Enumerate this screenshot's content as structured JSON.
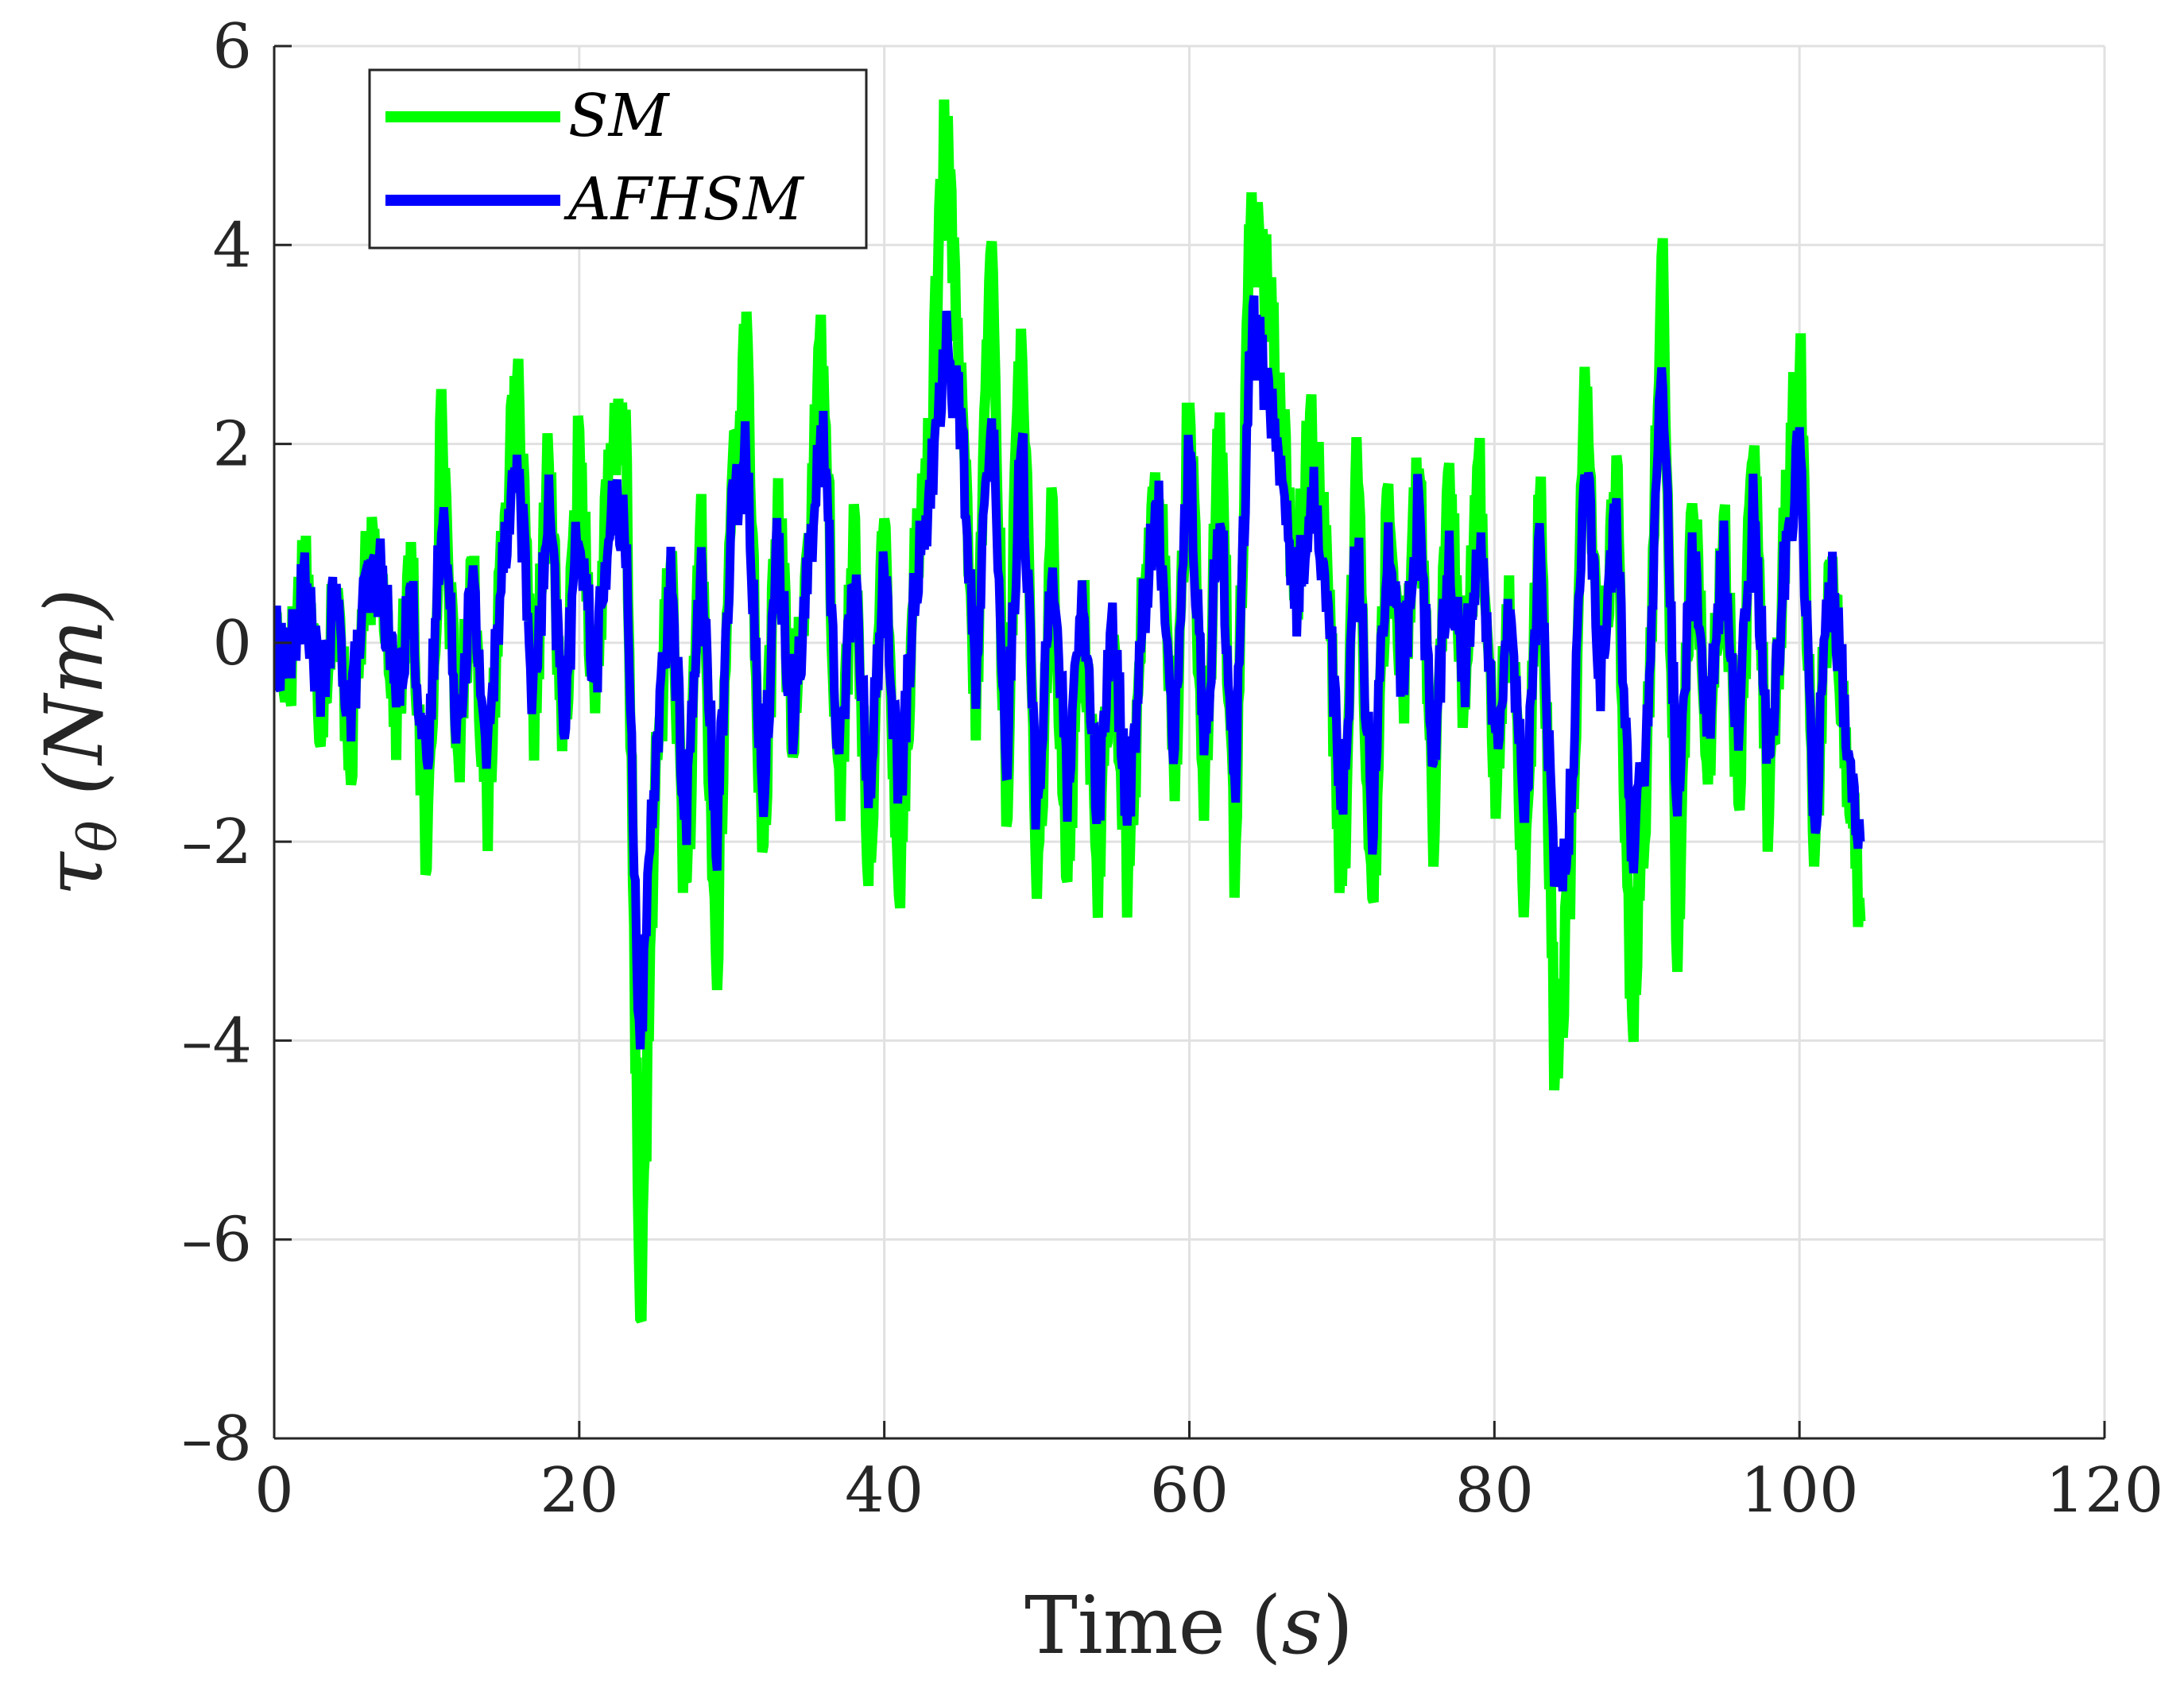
{
  "chart_data": {
    "type": "line",
    "title": "",
    "xlabel": "Time (s)",
    "xlabel_prefix": "Time (",
    "xlabel_var": "s",
    "xlabel_suffix": ")",
    "ylabel": "τθ (Nm)",
    "ylabel_sym": "τ",
    "ylabel_sub": "θ",
    "ylabel_unit": " (Nm)",
    "xlim": [
      0,
      120
    ],
    "ylim": [
      -8,
      6
    ],
    "grid": true,
    "legend_position": "top-left",
    "x_ticks": [
      0,
      20,
      40,
      60,
      80,
      100,
      120
    ],
    "y_ticks": [
      6,
      4,
      2,
      0,
      -2,
      -4,
      -6,
      -8
    ],
    "x_tick_labels": [
      "0",
      "20",
      "40",
      "60",
      "80",
      "100",
      "120"
    ],
    "y_tick_labels": [
      "6",
      "4",
      "2",
      "0",
      "–2",
      "–4",
      "–6",
      "–8"
    ],
    "x_data_range": [
      0,
      104
    ],
    "series": [
      {
        "name": "SM",
        "color": "#00ff00",
        "samples": [
          [
            0,
            0
          ],
          [
            1,
            -0.3
          ],
          [
            2,
            0.9
          ],
          [
            3,
            -0.7
          ],
          [
            4,
            0.5
          ],
          [
            5,
            -1.1
          ],
          [
            6,
            0.6
          ],
          [
            7,
            0.9
          ],
          [
            8,
            -0.7
          ],
          [
            9,
            0.7
          ],
          [
            10,
            -2.3
          ],
          [
            11,
            2.3
          ],
          [
            12,
            -1.2
          ],
          [
            13,
            0.8
          ],
          [
            14,
            -1.8
          ],
          [
            15,
            1.3
          ],
          [
            16,
            2.4
          ],
          [
            17,
            -0.8
          ],
          [
            18,
            1.8
          ],
          [
            19,
            -1.1
          ],
          [
            20,
            2.0
          ],
          [
            21,
            -0.5
          ],
          [
            22,
            1.7
          ],
          [
            23,
            2.4
          ],
          [
            24,
            -6.8
          ],
          [
            25,
            -1.5
          ],
          [
            26,
            0.9
          ],
          [
            27,
            -2.7
          ],
          [
            28,
            1.2
          ],
          [
            29,
            -3.4
          ],
          [
            30,
            1.7
          ],
          [
            31,
            3.0
          ],
          [
            32,
            -2.4
          ],
          [
            33,
            1.5
          ],
          [
            34,
            -1.0
          ],
          [
            35,
            1.0
          ],
          [
            36,
            3.2
          ],
          [
            37,
            -1.7
          ],
          [
            38,
            1.0
          ],
          [
            39,
            -2.2
          ],
          [
            40,
            1.2
          ],
          [
            41,
            -2.5
          ],
          [
            42,
            0.8
          ],
          [
            43,
            2.0
          ],
          [
            44,
            5.2
          ],
          [
            45,
            2.5
          ],
          [
            46,
            -0.7
          ],
          [
            47,
            4.2
          ],
          [
            48,
            -1.7
          ],
          [
            49,
            3.6
          ],
          [
            50,
            -2.8
          ],
          [
            51,
            1.2
          ],
          [
            52,
            -2.2
          ],
          [
            53,
            0.5
          ],
          [
            54,
            -2.4
          ],
          [
            55,
            0.3
          ],
          [
            56,
            -2.5
          ],
          [
            57,
            0.5
          ],
          [
            58,
            1.7
          ],
          [
            59,
            -1.5
          ],
          [
            60,
            2.6
          ],
          [
            61,
            -1.7
          ],
          [
            62,
            2.3
          ],
          [
            63,
            -2.2
          ],
          [
            64,
            4.2
          ],
          [
            65,
            3.7
          ],
          [
            66,
            2.3
          ],
          [
            67,
            0.5
          ],
          [
            68,
            2.3
          ],
          [
            69,
            1.0
          ],
          [
            70,
            -2.8
          ],
          [
            71,
            1.8
          ],
          [
            72,
            -2.8
          ],
          [
            73,
            1.4
          ],
          [
            74,
            -0.5
          ],
          [
            75,
            2.0
          ],
          [
            76,
            -1.9
          ],
          [
            77,
            1.5
          ],
          [
            78,
            -0.5
          ],
          [
            79,
            1.7
          ],
          [
            80,
            -1.5
          ],
          [
            81,
            0.5
          ],
          [
            82,
            -2.5
          ],
          [
            83,
            1.5
          ],
          [
            84,
            -4.5
          ],
          [
            85,
            -2.3
          ],
          [
            86,
            2.7
          ],
          [
            87,
            -0.5
          ],
          [
            88,
            1.7
          ],
          [
            89,
            -4.0
          ],
          [
            90,
            -1.2
          ],
          [
            91,
            4.1
          ],
          [
            92,
            -3.1
          ],
          [
            93,
            1.5
          ],
          [
            94,
            -1.2
          ],
          [
            95,
            1.2
          ],
          [
            96,
            -1.5
          ],
          [
            97,
            2.0
          ],
          [
            98,
            -1.9
          ],
          [
            99,
            1.0
          ],
          [
            100,
            3.0
          ],
          [
            101,
            -2.3
          ],
          [
            102,
            1.0
          ],
          [
            103,
            -0.9
          ],
          [
            104,
            -2.8
          ]
        ]
      },
      {
        "name": "AFHSM",
        "color": "#0000ff",
        "samples": [
          [
            0,
            0
          ],
          [
            1,
            -0.2
          ],
          [
            2,
            0.6
          ],
          [
            3,
            -0.5
          ],
          [
            4,
            0.4
          ],
          [
            5,
            -0.7
          ],
          [
            6,
            0.5
          ],
          [
            7,
            0.7
          ],
          [
            8,
            -0.5
          ],
          [
            9,
            0.5
          ],
          [
            10,
            -1.5
          ],
          [
            11,
            1.5
          ],
          [
            12,
            -0.8
          ],
          [
            13,
            0.6
          ],
          [
            14,
            -1.2
          ],
          [
            15,
            1.0
          ],
          [
            16,
            1.8
          ],
          [
            17,
            -0.6
          ],
          [
            18,
            1.3
          ],
          [
            19,
            -0.8
          ],
          [
            20,
            1.3
          ],
          [
            21,
            -0.4
          ],
          [
            22,
            1.2
          ],
          [
            23,
            1.3
          ],
          [
            24,
            -4.2
          ],
          [
            25,
            -1.1
          ],
          [
            26,
            0.6
          ],
          [
            27,
            -1.8
          ],
          [
            28,
            0.8
          ],
          [
            29,
            -2.0
          ],
          [
            30,
            1.2
          ],
          [
            31,
            2.0
          ],
          [
            32,
            -1.6
          ],
          [
            33,
            1.0
          ],
          [
            34,
            -0.7
          ],
          [
            35,
            0.7
          ],
          [
            36,
            2.2
          ],
          [
            37,
            -1.2
          ],
          [
            38,
            0.7
          ],
          [
            39,
            -1.5
          ],
          [
            40,
            0.8
          ],
          [
            41,
            -1.7
          ],
          [
            42,
            0.6
          ],
          [
            43,
            1.5
          ],
          [
            44,
            3.0
          ],
          [
            45,
            2.3
          ],
          [
            46,
            -0.5
          ],
          [
            47,
            2.5
          ],
          [
            48,
            -1.2
          ],
          [
            49,
            2.2
          ],
          [
            50,
            -1.8
          ],
          [
            51,
            0.9
          ],
          [
            52,
            -1.5
          ],
          [
            53,
            0.4
          ],
          [
            54,
            -1.7
          ],
          [
            55,
            0.2
          ],
          [
            56,
            -1.8
          ],
          [
            57,
            0.4
          ],
          [
            58,
            1.3
          ],
          [
            59,
            -1.0
          ],
          [
            60,
            2.0
          ],
          [
            61,
            -1.2
          ],
          [
            62,
            1.5
          ],
          [
            63,
            -1.5
          ],
          [
            64,
            3.2
          ],
          [
            65,
            2.7
          ],
          [
            66,
            1.7
          ],
          [
            67,
            0.4
          ],
          [
            68,
            1.5
          ],
          [
            69,
            0.7
          ],
          [
            70,
            -1.8
          ],
          [
            71,
            1.2
          ],
          [
            72,
            -1.8
          ],
          [
            73,
            1.0
          ],
          [
            74,
            -0.4
          ],
          [
            75,
            1.4
          ],
          [
            76,
            -1.3
          ],
          [
            77,
            1.0
          ],
          [
            78,
            -0.4
          ],
          [
            79,
            1.2
          ],
          [
            80,
            -1.0
          ],
          [
            81,
            0.4
          ],
          [
            82,
            -1.7
          ],
          [
            83,
            1.0
          ],
          [
            84,
            -2.6
          ],
          [
            85,
            -1.6
          ],
          [
            86,
            1.8
          ],
          [
            87,
            -0.4
          ],
          [
            88,
            1.3
          ],
          [
            89,
            -2.2
          ],
          [
            90,
            -0.9
          ],
          [
            91,
            2.9
          ],
          [
            92,
            -1.7
          ],
          [
            93,
            1.0
          ],
          [
            94,
            -0.9
          ],
          [
            95,
            0.9
          ],
          [
            96,
            -1.0
          ],
          [
            97,
            1.4
          ],
          [
            98,
            -1.3
          ],
          [
            99,
            0.7
          ],
          [
            100,
            2.1
          ],
          [
            101,
            -1.8
          ],
          [
            102,
            0.8
          ],
          [
            103,
            -0.7
          ],
          [
            104,
            -2.0
          ]
        ]
      }
    ]
  }
}
